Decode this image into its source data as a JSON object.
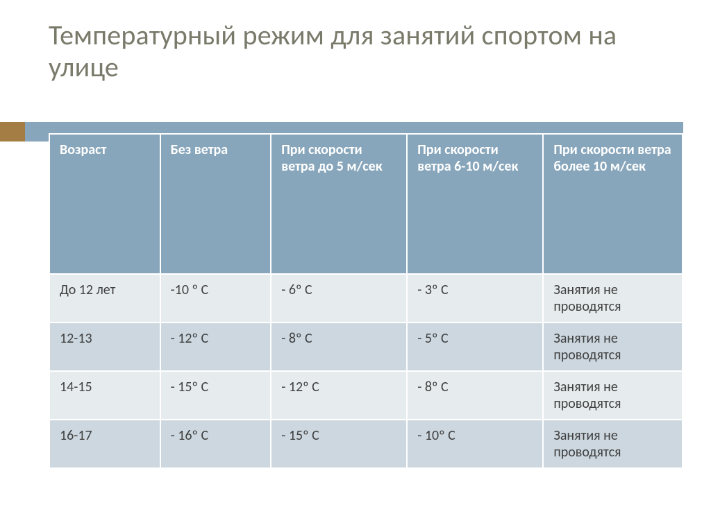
{
  "slide": {
    "title": "Температурный режим для занятий спортом на улице",
    "title_color": "#7a7a6b",
    "title_fontsize": 40,
    "accent_left_color": "#a47d44",
    "accent_strip_color": "#88a6bb",
    "background_color": "#ffffff"
  },
  "table": {
    "type": "table",
    "header_bg": "#88a6bb",
    "header_fg": "#ffffff",
    "row_odd_bg": "#e6ebee",
    "row_even_bg": "#ccd7df",
    "cell_fg": "#404040",
    "border_color": "#ffffff",
    "font_size": 20,
    "column_widths_pct": [
      17.5,
      17.5,
      21.5,
      21.5,
      22
    ],
    "columns": [
      "Возраст",
      "Без ветра",
      "При скорости ветра до 5 м/сек",
      "При скорости ветра 6-10 м/сек",
      "При скорости ветра более 10 м/сек"
    ],
    "rows": [
      [
        "До 12 лет",
        "-10 º С",
        "- 6º С",
        "- 3º С",
        "Занятия не проводятся"
      ],
      [
        "12-13",
        "- 12º С",
        "- 8º С",
        "- 5º С",
        "Занятия не проводятся"
      ],
      [
        "14-15",
        "- 15º С",
        "- 12º С",
        "- 8º С",
        "Занятия не проводятся"
      ],
      [
        "16-17",
        "- 16º С",
        "- 15º С",
        "- 10º С",
        "Занятия не проводятся"
      ]
    ]
  }
}
